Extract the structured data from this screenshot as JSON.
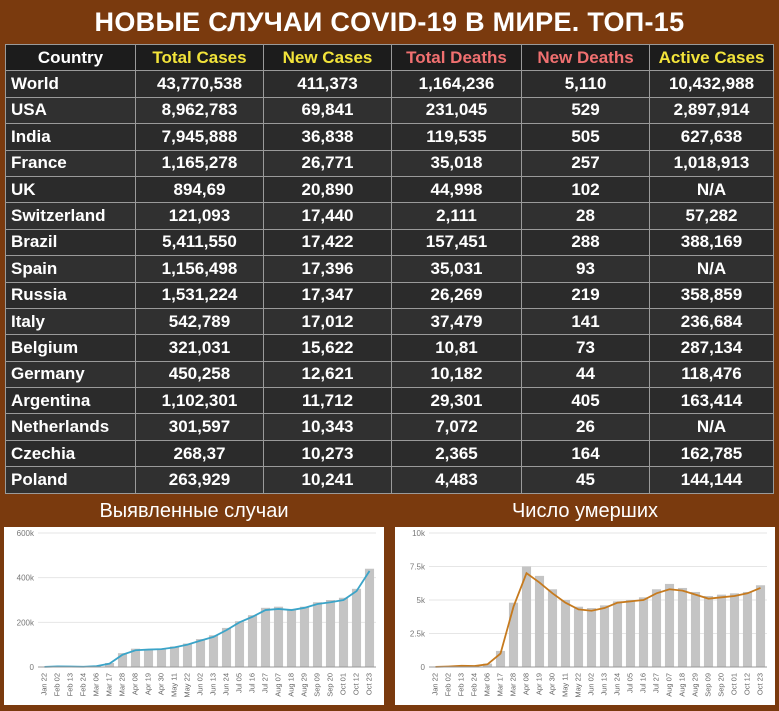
{
  "title": "НОВЫЕ СЛУЧАИ COVID-19 В МИРЕ. ТОП-15",
  "colors": {
    "background": "#7a3a0e",
    "header_cases": "#f2e33a",
    "header_deaths": "#f07070",
    "header_neutral": "#ffffff",
    "bar_gray": "#c4c4c4",
    "line_cases": "#3ba4c8",
    "line_deaths": "#c67a1e"
  },
  "table": {
    "headers": [
      {
        "label": "Country",
        "color": "#ffffff"
      },
      {
        "label": "Total Cases",
        "color": "#f2e33a"
      },
      {
        "label": "New Cases",
        "color": "#f2e33a"
      },
      {
        "label": "Total Deaths",
        "color": "#f07070"
      },
      {
        "label": "New Deaths",
        "color": "#f07070"
      },
      {
        "label": "Active Cases",
        "color": "#f2e33a"
      }
    ],
    "rows": [
      [
        "World",
        "43,770,538",
        "411,373",
        "1,164,236",
        "5,110",
        "10,432,988"
      ],
      [
        "USA",
        "8,962,783",
        "69,841",
        "231,045",
        "529",
        "2,897,914"
      ],
      [
        "India",
        "7,945,888",
        "36,838",
        "119,535",
        "505",
        "627,638"
      ],
      [
        "France",
        "1,165,278",
        "26,771",
        "35,018",
        "257",
        "1,018,913"
      ],
      [
        "UK",
        "894,69",
        "20,890",
        "44,998",
        "102",
        "N/A"
      ],
      [
        "Switzerland",
        "121,093",
        "17,440",
        "2,111",
        "28",
        "57,282"
      ],
      [
        "Brazil",
        "5,411,550",
        "17,422",
        "157,451",
        "288",
        "388,169"
      ],
      [
        "Spain",
        "1,156,498",
        "17,396",
        "35,031",
        "93",
        "N/A"
      ],
      [
        "Russia",
        "1,531,224",
        "17,347",
        "26,269",
        "219",
        "358,859"
      ],
      [
        "Italy",
        "542,789",
        "17,012",
        "37,479",
        "141",
        "236,684"
      ],
      [
        "Belgium",
        "321,031",
        "15,622",
        "10,81",
        "73",
        "287,134"
      ],
      [
        "Germany",
        "450,258",
        "12,621",
        "10,182",
        "44",
        "118,476"
      ],
      [
        "Argentina",
        "1,102,301",
        "11,712",
        "29,301",
        "405",
        "163,414"
      ],
      [
        "Netherlands",
        "301,597",
        "10,343",
        "7,072",
        "26",
        "N/A"
      ],
      [
        "Czechia",
        "268,37",
        "10,273",
        "2,365",
        "164",
        "162,785"
      ],
      [
        "Poland",
        "263,929",
        "10,241",
        "4,483",
        "45",
        "144,144"
      ]
    ]
  },
  "chart_data": [
    {
      "type": "bar",
      "title": "Выявленные случаи",
      "categories": [
        "Jan 22",
        "Feb 02",
        "Feb 13",
        "Feb 24",
        "Mar 06",
        "Mar 17",
        "Mar 28",
        "Apr 08",
        "Apr 19",
        "Apr 30",
        "May 11",
        "May 22",
        "Jun 02",
        "Jun 13",
        "Jun 24",
        "Jul 05",
        "Jul 16",
        "Jul 27",
        "Aug 07",
        "Aug 18",
        "Aug 29",
        "Sep 09",
        "Sep 20",
        "Oct 01",
        "Oct 12",
        "Oct 23"
      ],
      "series": [
        {
          "type": "bar",
          "values": [
            1000,
            3000,
            2500,
            1500,
            5000,
            18000,
            62000,
            82000,
            80000,
            82000,
            92000,
            105000,
            125000,
            142000,
            175000,
            205000,
            232000,
            265000,
            270000,
            260000,
            270000,
            290000,
            300000,
            310000,
            350000,
            440000
          ]
        },
        {
          "type": "line",
          "values": [
            500,
            2500,
            2000,
            1000,
            4000,
            15000,
            55000,
            75000,
            78000,
            80000,
            88000,
            100000,
            118000,
            135000,
            165000,
            200000,
            225000,
            255000,
            260000,
            255000,
            265000,
            282000,
            290000,
            300000,
            340000,
            430000
          ]
        }
      ],
      "yticks": [
        "0",
        "200k",
        "400k",
        "600k"
      ],
      "ylim": [
        0,
        600000
      ]
    },
    {
      "type": "bar",
      "title": "Число умерших",
      "categories": [
        "Jan 22",
        "Feb 02",
        "Feb 13",
        "Feb 24",
        "Mar 06",
        "Mar 17",
        "Mar 28",
        "Apr 08",
        "Apr 19",
        "Apr 30",
        "May 11",
        "May 22",
        "Jun 02",
        "Jun 13",
        "Jun 24",
        "Jul 05",
        "Jul 16",
        "Jul 27",
        "Aug 07",
        "Aug 18",
        "Aug 29",
        "Sep 09",
        "Sep 20",
        "Oct 01",
        "Oct 12",
        "Oct 23"
      ],
      "series": [
        {
          "type": "bar",
          "values": [
            20,
            50,
            100,
            80,
            250,
            1200,
            4800,
            7500,
            6800,
            5800,
            5000,
            4500,
            4400,
            4600,
            4900,
            5000,
            5200,
            5800,
            6200,
            5900,
            5600,
            5300,
            5400,
            5500,
            5600,
            6100
          ]
        },
        {
          "type": "line",
          "values": [
            10,
            40,
            90,
            70,
            200,
            1000,
            4500,
            7000,
            6300,
            5500,
            4800,
            4300,
            4200,
            4400,
            4800,
            4900,
            5000,
            5500,
            5800,
            5700,
            5400,
            5100,
            5200,
            5300,
            5500,
            5900
          ]
        }
      ],
      "yticks": [
        "0",
        "2.5k",
        "5k",
        "7.5k",
        "10k"
      ],
      "ylim": [
        0,
        10000
      ]
    }
  ]
}
